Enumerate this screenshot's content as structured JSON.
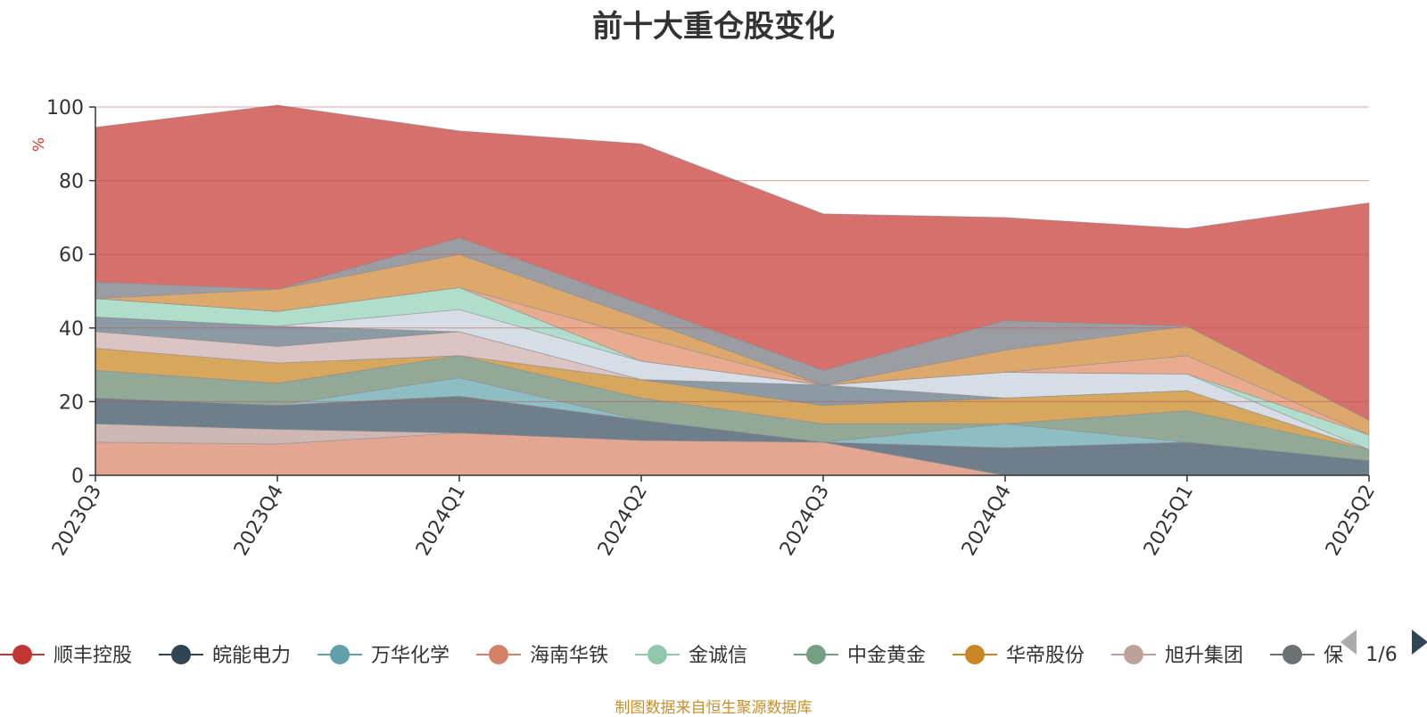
{
  "chart_data": {
    "type": "area",
    "title": "前十大重仓股变化",
    "ylabel": "%",
    "ylim": [
      0,
      100
    ],
    "yticks": [
      0,
      20,
      40,
      60,
      80,
      100
    ],
    "categories": [
      "2023Q3",
      "2023Q4",
      "2024Q1",
      "2024Q2",
      "2024Q3",
      "2024Q4",
      "2025Q1",
      "2025Q2"
    ],
    "grid": true,
    "legend_position": "bottom",
    "legend_page": "1/6",
    "series": [
      {
        "name": "海南华铁",
        "color": "#e3a693",
        "values": [
          9,
          8.5,
          11.5,
          9.5,
          9,
          0,
          0,
          0
        ]
      },
      {
        "name": "",
        "color": "#cfb8b4",
        "values": [
          5,
          4,
          0,
          0,
          0,
          0,
          0,
          0
        ]
      },
      {
        "name": "",
        "color": "#6e7e8b",
        "values": [
          7,
          6.5,
          10,
          5.5,
          0,
          7.5,
          9,
          4
        ]
      },
      {
        "name": "",
        "color": "#8fbdc4",
        "values": [
          0,
          0,
          5,
          0,
          0,
          6.5,
          0,
          0
        ]
      },
      {
        "name": "",
        "color": "#92a998",
        "values": [
          7.5,
          6,
          6,
          6,
          5,
          0,
          8.5,
          3
        ]
      },
      {
        "name": "",
        "color": "#d7a75e",
        "values": [
          6,
          5.5,
          0,
          5,
          5,
          7,
          5.5,
          0
        ]
      },
      {
        "name": "",
        "color": "#dbc4c3",
        "values": [
          4.5,
          4.5,
          6.5,
          0,
          0,
          0,
          0,
          0
        ]
      },
      {
        "name": "",
        "color": "#8c9aa3",
        "values": [
          4,
          5.5,
          0,
          0,
          5.5,
          0,
          0,
          0
        ]
      },
      {
        "name": "",
        "color": "#d6dde4",
        "values": [
          0,
          0,
          6,
          5,
          0,
          7,
          4.5,
          0
        ]
      },
      {
        "name": "",
        "color": "#b0ddcc",
        "values": [
          5,
          4,
          6,
          0,
          0,
          0,
          0,
          4
        ]
      },
      {
        "name": "",
        "color": "#e8ab8e",
        "values": [
          0,
          0,
          0,
          6.5,
          0,
          0,
          5,
          0
        ]
      },
      {
        "name": "",
        "color": "#dda86b",
        "values": [
          0,
          6,
          9,
          5,
          0,
          6,
          8,
          4
        ]
      },
      {
        "name": "",
        "color": "#9c9da2",
        "values": [
          4.5,
          0,
          4.5,
          4,
          4,
          8,
          0,
          0
        ]
      },
      {
        "name": "顺丰控股",
        "color": "#d5706d",
        "values": [
          42,
          50,
          29,
          43.5,
          42.5,
          28,
          26.5,
          59
        ]
      }
    ],
    "legend": [
      {
        "name": "顺丰控股",
        "color": "#c23531"
      },
      {
        "name": "皖能电力",
        "color": "#2f4554"
      },
      {
        "name": "万华化学",
        "color": "#61a0a8"
      },
      {
        "name": "海南华铁",
        "color": "#d48265"
      },
      {
        "name": "金诚信",
        "color": "#91c7ae"
      },
      {
        "name": "中金黄金",
        "color": "#749f83"
      },
      {
        "name": "华帝股份",
        "color": "#ca8622"
      },
      {
        "name": "旭升集团",
        "color": "#bda29a"
      },
      {
        "name": "保",
        "color": "#6e7074"
      }
    ]
  },
  "footer": {
    "source": "制图数据来自恒生聚源数据库",
    "source_color": "#c8902a"
  },
  "colors": {
    "axis": "#333333",
    "grid": "#b8545a",
    "ylabel": "#e0352b",
    "pager_disabled": "#aaaaaa",
    "pager_active": "#2f4554"
  }
}
